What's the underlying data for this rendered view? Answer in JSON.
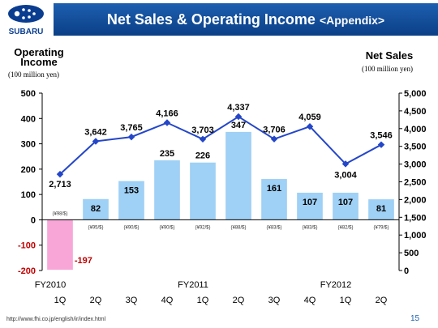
{
  "header": {
    "brand": "SUBARU",
    "title": "Net Sales & Operating Income",
    "title_suffix": "<Appendix>"
  },
  "footer": {
    "url": "http://www.fhi.co.jp/english/ir/index.html",
    "page": "15"
  },
  "chart_data": {
    "type": "bar+line",
    "categories": [
      "1Q",
      "2Q",
      "3Q",
      "4Q",
      "1Q",
      "2Q",
      "3Q",
      "4Q",
      "1Q",
      "2Q"
    ],
    "fiscal_year_labels": [
      {
        "label": "FY2010",
        "category_index": 0
      },
      {
        "label": "FY2011",
        "category_index": 4
      },
      {
        "label": "FY2012",
        "category_index": 8
      }
    ],
    "exchange_rates": [
      "(¥98/$)",
      "(¥95/$)",
      "(¥90/$)",
      "(¥90/$)",
      "(¥92/$)",
      "(¥88/$)",
      "(¥83/$)",
      "(¥83/$)",
      "(¥82/$)",
      "(¥79/$)"
    ],
    "series": [
      {
        "name": "Operating Income",
        "kind": "bar",
        "axis": "left",
        "values": [
          -197,
          82,
          153,
          235,
          226,
          347,
          161,
          107,
          107,
          81
        ],
        "labels": [
          "-197",
          "82",
          "153",
          "235",
          "226",
          "347",
          "161",
          "107",
          "107",
          "81"
        ],
        "color": "#9fd0f5",
        "negative_color": "#f8a6d8"
      },
      {
        "name": "Net Sales",
        "kind": "line",
        "axis": "right",
        "values": [
          2713,
          3642,
          3765,
          4166,
          3703,
          4337,
          3706,
          4059,
          3004,
          3546
        ],
        "labels": [
          "2,713",
          "3,642",
          "3,765",
          "4,166",
          "3,703",
          "4,337",
          "3,706",
          "4,059",
          "3,004",
          "3,546"
        ],
        "color": "#2446c8"
      }
    ],
    "left_axis": {
      "title": "Operating Income",
      "unit": "(100 million yen)",
      "range": [
        -200,
        500
      ],
      "ticks": [
        500,
        400,
        300,
        200,
        100,
        0,
        -100,
        -200
      ],
      "tick_labels": [
        "500",
        "400",
        "300",
        "200",
        "100",
        "0",
        "-100",
        "-200"
      ]
    },
    "right_axis": {
      "title": "Net Sales",
      "unit": "(100 million yen)",
      "range": [
        0,
        5000
      ],
      "ticks": [
        5000,
        4500,
        4000,
        3500,
        3000,
        2500,
        2000,
        1500,
        1000,
        500,
        0
      ],
      "tick_labels": [
        "5,000",
        "4,500",
        "4,000",
        "3,500",
        "3,000",
        "2,500",
        "2,000",
        "1,500",
        "1,000",
        "500",
        "0"
      ]
    },
    "colors": {
      "negative_tick": "#c00000",
      "negative_label": "#c00000"
    }
  }
}
